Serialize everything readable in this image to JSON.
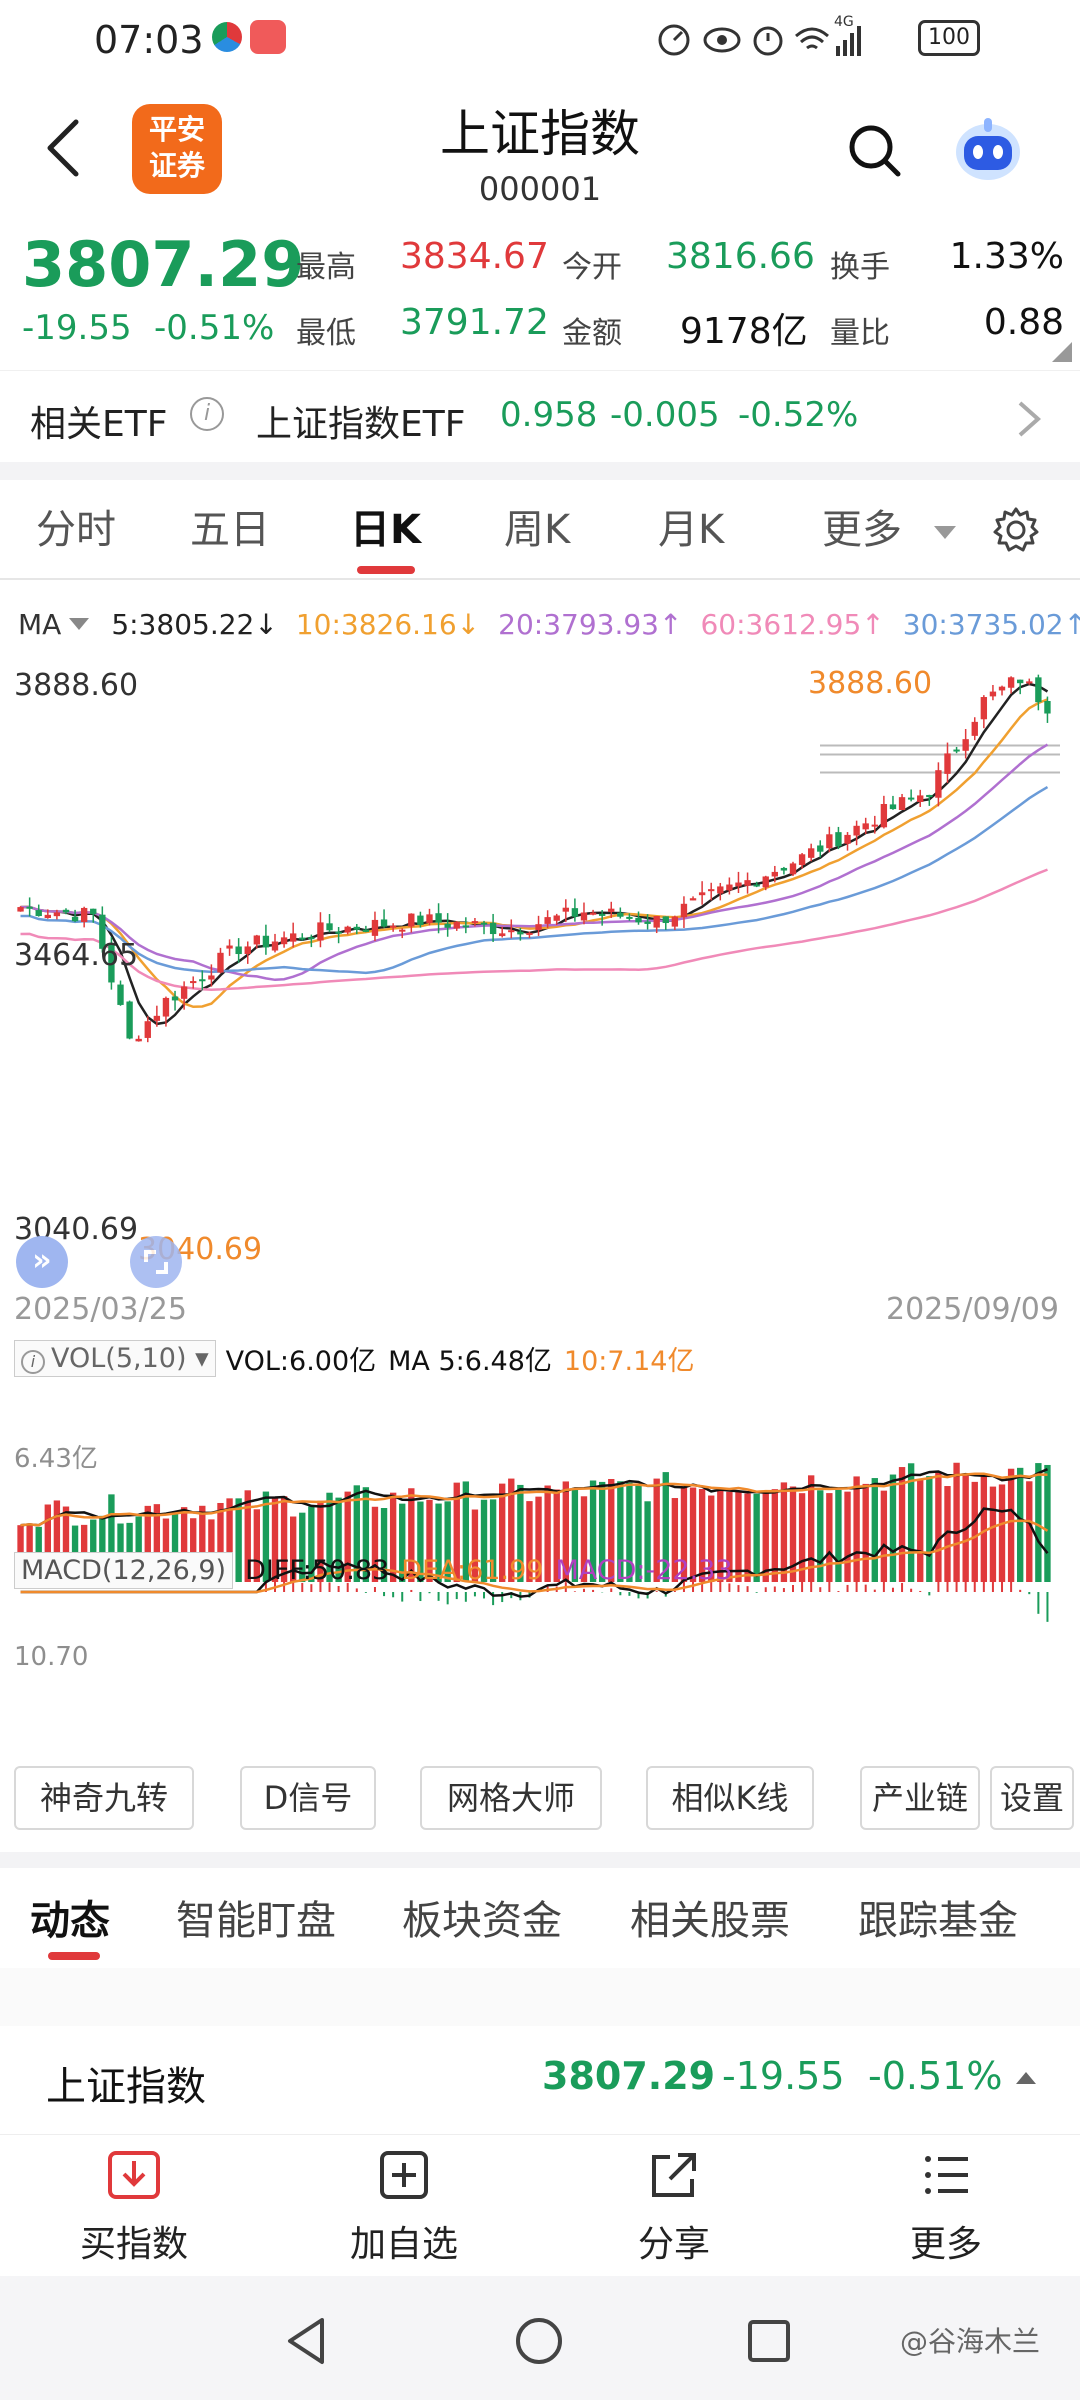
{
  "status_bar": {
    "time": "07:03",
    "network": "4G",
    "battery": "100"
  },
  "header": {
    "back_icon": "chevron-left-icon",
    "logo_text_line1": "平安",
    "logo_text_line2": "证券",
    "title": "上证指数",
    "code": "000001",
    "search_icon": "search-icon",
    "assistant_icon": "robot-icon"
  },
  "quote": {
    "price": "3807.29",
    "change": "-19.55",
    "change_pct": "-0.51%",
    "high_label": "最高",
    "high": "3834.67",
    "open_label": "今开",
    "open": "3816.66",
    "turnover_label": "换手",
    "turnover": "1.33%",
    "low_label": "最低",
    "low": "3791.72",
    "amount_label": "金额",
    "amount": "9178亿",
    "vol_ratio_label": "量比",
    "vol_ratio": "0.88"
  },
  "etf": {
    "label": "相关ETF",
    "info_icon": "info-icon",
    "name": "上证指数ETF",
    "price": "0.958",
    "change": "-0.005",
    "change_pct": "-0.52%",
    "chevron_icon": "chevron-right-icon"
  },
  "period_tabs": {
    "items": [
      "分时",
      "五日",
      "日K",
      "周K",
      "月K",
      "更多"
    ],
    "active": "日K",
    "settings_icon": "gear-icon"
  },
  "ma_legend": {
    "label": "MA",
    "ma5": "5:3805.22↓",
    "ma10": "10:3826.16↓",
    "ma20": "20:3793.93↑",
    "ma60": "60:3612.95↑",
    "ma30": "30:3735.02↑",
    "colors": {
      "ma5": "#222222",
      "ma10": "#f0a030",
      "ma20": "#b070d0",
      "ma60": "#f08ab8",
      "ma30": "#6a9bd8"
    }
  },
  "kline": {
    "y_top": "3888.60",
    "y_mid": "3464.65",
    "y_bottom": "3040.69",
    "max_marker": "3888.60",
    "min_marker": "3040.69",
    "date_start": "2025/03/25",
    "date_end": "2025/09/09"
  },
  "volume": {
    "label": "VOL(5,10)",
    "vol": "VOL:6.00亿",
    "ma5": "MA 5:6.48亿",
    "ma10": "10:7.14亿",
    "axis_label": "6.43亿"
  },
  "macd": {
    "label": "MACD(12,26,9)",
    "diff": "DIFF:50.83",
    "dea": "DEA:61.99",
    "macd": "MACD:-22.33",
    "axis_label": "10.70"
  },
  "tools": [
    "神奇九转",
    "D信号",
    "网格大师",
    "相似K线",
    "产业链",
    "设置"
  ],
  "info_tabs": {
    "items": [
      "动态",
      "智能盯盘",
      "板块资金",
      "相关股票",
      "跟踪基金"
    ],
    "active": "动态"
  },
  "index_row": {
    "name": "上证指数",
    "price": "3807.29",
    "change": "-19.55",
    "change_pct": "-0.51%"
  },
  "bottom_bar": [
    {
      "label": "买指数",
      "icon": "download-icon"
    },
    {
      "label": "加自选",
      "icon": "plus-square-icon"
    },
    {
      "label": "分享",
      "icon": "share-icon"
    },
    {
      "label": "更多",
      "icon": "menu-icon"
    }
  ],
  "watermark": "@谷海木兰",
  "colors": {
    "up": "#e0393b",
    "down": "#1a9c5a",
    "accent": "#f08a2c"
  }
}
